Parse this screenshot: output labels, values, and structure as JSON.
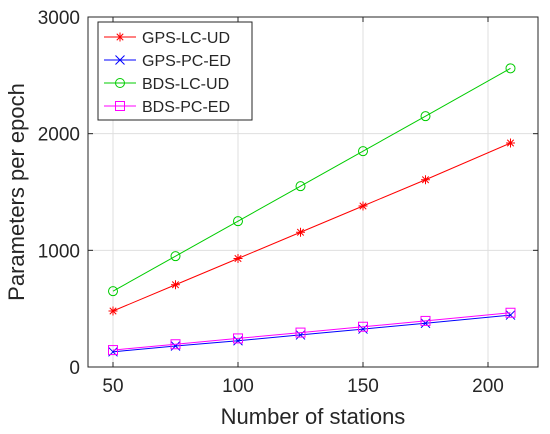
{
  "chart_data": {
    "type": "line",
    "title": "",
    "xlabel": "Number of stations",
    "ylabel": "Parameters per epoch",
    "xlim": [
      40,
      220
    ],
    "ylim": [
      0,
      3000
    ],
    "xticks": [
      50,
      100,
      150,
      200
    ],
    "yticks": [
      0,
      1000,
      2000,
      3000
    ],
    "grid": true,
    "legend_position": "top-left",
    "x": [
      50,
      75,
      100,
      125,
      150,
      175,
      209
    ],
    "series": [
      {
        "name": "GPS-LC-UD",
        "color": "#ff0000",
        "marker": "asterisk",
        "values": [
          480,
          705,
          930,
          1155,
          1380,
          1605,
          1920
        ]
      },
      {
        "name": "GPS-PC-ED",
        "color": "#0000ff",
        "marker": "x",
        "values": [
          130,
          180,
          225,
          275,
          325,
          375,
          445
        ]
      },
      {
        "name": "BDS-LC-UD",
        "color": "#00cc00",
        "marker": "circle",
        "values": [
          650,
          950,
          1250,
          1550,
          1850,
          2150,
          2560
        ]
      },
      {
        "name": "BDS-PC-ED",
        "color": "#ff00ff",
        "marker": "square",
        "values": [
          145,
          195,
          245,
          295,
          345,
          395,
          465
        ]
      }
    ]
  }
}
